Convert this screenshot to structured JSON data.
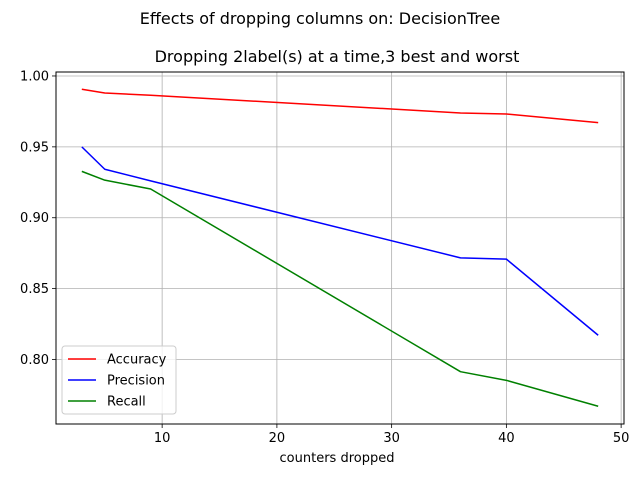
{
  "figure": {
    "suptitle": "Effects of dropping columns on: DecisionTree"
  },
  "chart_data": {
    "type": "line",
    "title": "Dropping 2label(s) at a time,3 best and worst",
    "xlabel": "counters dropped",
    "ylabel": "",
    "xlim": [
      0.75,
      50.25
    ],
    "ylim": [
      0.7545,
      1.0028
    ],
    "xticks": [
      10,
      20,
      30,
      40,
      50
    ],
    "xtick_labels": [
      "10",
      "20",
      "30",
      "40",
      "50"
    ],
    "yticks": [
      0.8,
      0.85,
      0.9,
      0.95,
      1.0
    ],
    "ytick_labels": [
      "0.80",
      "0.85",
      "0.90",
      "0.95",
      "1.00"
    ],
    "grid": true,
    "legend_position": "lower-left",
    "series": [
      {
        "name": "Accuracy",
        "color": "#ff0000",
        "x": [
          3,
          5,
          9,
          36,
          40,
          48
        ],
        "y": [
          0.9906,
          0.988,
          0.9864,
          0.9739,
          0.9732,
          0.9671
        ]
      },
      {
        "name": "Precision",
        "color": "#0000ff",
        "x": [
          3,
          5,
          9,
          36,
          40,
          48
        ],
        "y": [
          0.95,
          0.9342,
          0.926,
          0.8717,
          0.8708,
          0.8171
        ]
      },
      {
        "name": "Recall",
        "color": "#008000",
        "x": [
          3,
          5,
          9,
          36,
          40,
          48
        ],
        "y": [
          0.9327,
          0.9265,
          0.9203,
          0.7914,
          0.7853,
          0.767
        ]
      }
    ]
  }
}
